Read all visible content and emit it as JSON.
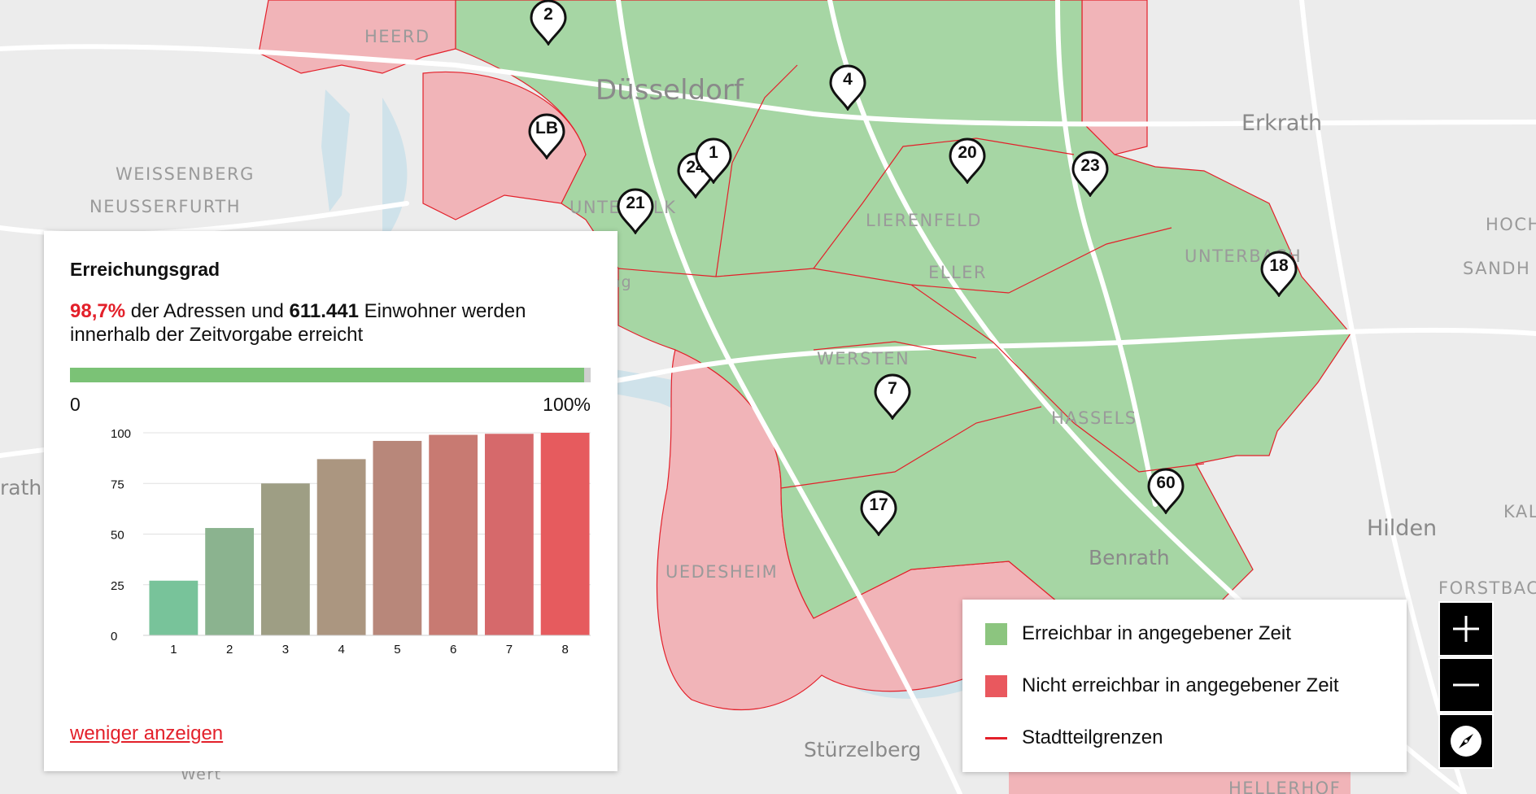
{
  "map": {
    "place_labels": [
      "HEERD",
      "WEISSENBERG",
      "NEUSSERFURTH",
      "UNTERBILK",
      "LIERENFELD",
      "ELLER",
      "UNTERBACH",
      "WERSTEN",
      "HASSELS",
      "UEDESHEIM",
      "HOCH",
      "SANDH",
      "KAL",
      "FORSTBAC",
      "HELLERHOF",
      "ring",
      "Wert"
    ],
    "city_labels": [
      "Düsseldorf",
      "Erkrath",
      "Hilden",
      "Benrath",
      "Stürzelberg",
      "rath"
    ],
    "markers": [
      "2",
      "LB",
      "4",
      "24",
      "1",
      "21",
      "20",
      "23",
      "18",
      "7",
      "17",
      "60"
    ]
  },
  "panel": {
    "title": "Erreichungsgrad",
    "percent_text": "98,7%",
    "text_part1": " der Adressen und ",
    "residents": "611.441",
    "text_part2": " Einwohner werden innerhalb der Zeitvorgabe erreicht",
    "progress_fraction": 0.987,
    "progress_min_label": "0",
    "progress_max_label": "100%",
    "less_link": "weniger anzeigen"
  },
  "chart_data": {
    "type": "bar",
    "categories": [
      "1",
      "2",
      "3",
      "4",
      "5",
      "6",
      "7",
      "8"
    ],
    "values": [
      27,
      53,
      75,
      87,
      96,
      99,
      99.5,
      100
    ],
    "ylim": [
      0,
      100
    ],
    "yticks": [
      0,
      25,
      50,
      75,
      100
    ],
    "colors": [
      "#78c39a",
      "#8bb38f",
      "#9e9e84",
      "#ab9680",
      "#b8877a",
      "#c87a72",
      "#d6696b",
      "#e65b5e"
    ],
    "grid": true,
    "title": "",
    "xlabel": "",
    "ylabel": ""
  },
  "legend": {
    "items": [
      {
        "label": "Erreichbar in angegebener Zeit",
        "color": "#8cc57f"
      },
      {
        "label": "Nicht erreichbar in angegebener Zeit",
        "color": "#e9585e"
      },
      {
        "label": "Stadtteilgrenzen",
        "color": "#e3202a"
      }
    ]
  },
  "controls": {
    "zoom_in_icon": "plus-icon",
    "zoom_out_icon": "minus-icon",
    "compass_icon": "compass-icon"
  },
  "colors": {
    "reachable": "#8cc57f",
    "unreachable": "#f1b4b8",
    "boundary": "#e3202a",
    "accent": "#e3202a"
  }
}
